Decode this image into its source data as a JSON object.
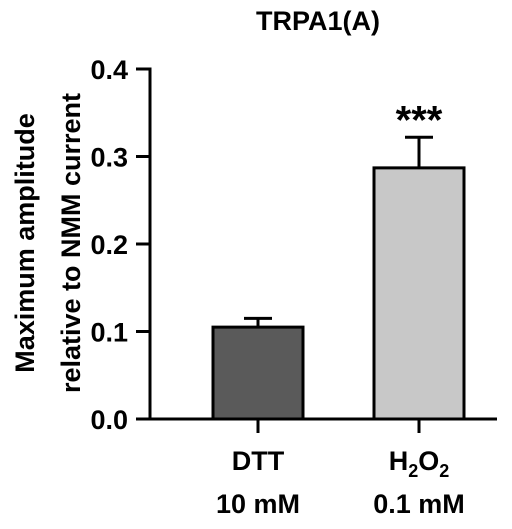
{
  "chart_data": {
    "type": "bar",
    "title": "TRPA1(A)",
    "ylabel_lines": [
      "Maximum amplitude",
      "relative to NMM current"
    ],
    "xlabel": "",
    "ylim": [
      0,
      0.4
    ],
    "yticks": [
      0.0,
      0.1,
      0.2,
      0.3,
      0.4
    ],
    "ytick_labels": [
      "0.0",
      "0.1",
      "0.2",
      "0.3",
      "0.4"
    ],
    "grid": false,
    "categories": [
      {
        "line1": "DTT",
        "line1_sub": "",
        "line1_tail": "",
        "line2": "10 mM"
      },
      {
        "line1": "H",
        "line1_sub": "2",
        "line1_tail": "O",
        "line1_sub2": "2",
        "line2": "0.1 mM"
      }
    ],
    "values": [
      0.105,
      0.287
    ],
    "errors": [
      0.01,
      0.035
    ],
    "bar_colors": [
      "#5a5a5a",
      "#c8c8c8"
    ],
    "annotations": [
      "",
      "***"
    ]
  }
}
